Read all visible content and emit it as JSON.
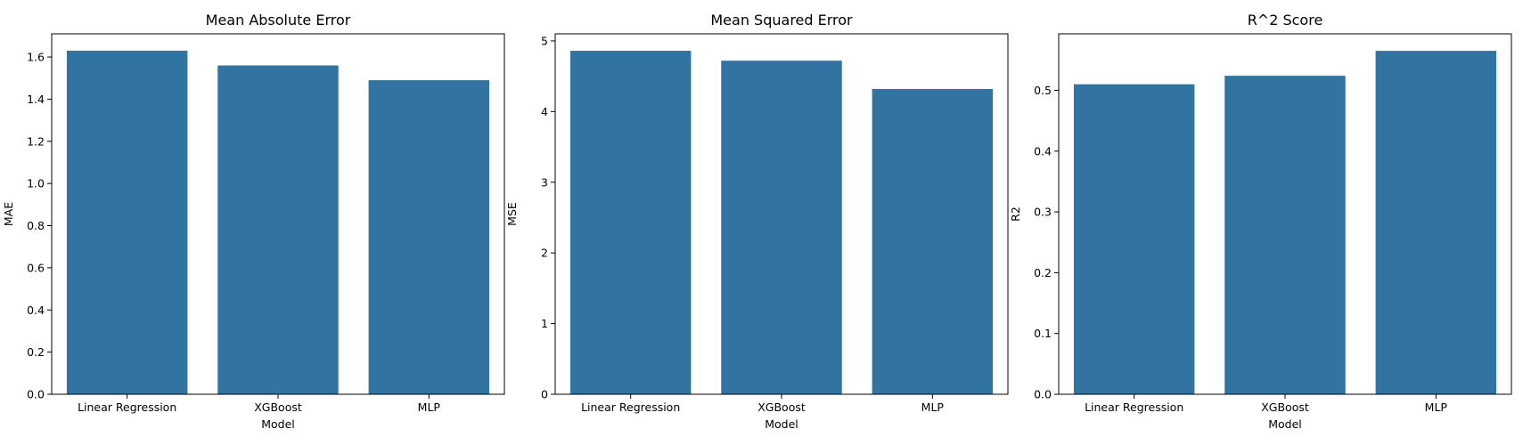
{
  "colors": {
    "bar": "#3274a1"
  },
  "chart_data": [
    {
      "type": "bar",
      "title": "Mean Absolute Error",
      "xlabel": "Model",
      "ylabel": "MAE",
      "categories": [
        "Linear Regression",
        "XGBoost",
        "MLP"
      ],
      "values": [
        1.63,
        1.56,
        1.49
      ],
      "ylim": [
        0,
        1.71
      ],
      "yticks": [
        0.0,
        0.2,
        0.4,
        0.6,
        0.8,
        1.0,
        1.2,
        1.4,
        1.6
      ],
      "ytick_labels": [
        "0.0",
        "0.2",
        "0.4",
        "0.6",
        "0.8",
        "1.0",
        "1.2",
        "1.4",
        "1.6"
      ],
      "grid": false
    },
    {
      "type": "bar",
      "title": "Mean Squared Error",
      "xlabel": "Model",
      "ylabel": "MSE",
      "categories": [
        "Linear Regression",
        "XGBoost",
        "MLP"
      ],
      "values": [
        4.86,
        4.72,
        4.32
      ],
      "ylim": [
        0,
        5.1
      ],
      "yticks": [
        0,
        1,
        2,
        3,
        4,
        5
      ],
      "ytick_labels": [
        "0",
        "1",
        "2",
        "3",
        "4",
        "5"
      ],
      "grid": false
    },
    {
      "type": "bar",
      "title": "R^2 Score",
      "xlabel": "Model",
      "ylabel": "R2",
      "categories": [
        "Linear Regression",
        "XGBoost",
        "MLP"
      ],
      "values": [
        0.51,
        0.524,
        0.565
      ],
      "ylim": [
        0,
        0.593
      ],
      "yticks": [
        0.0,
        0.1,
        0.2,
        0.3,
        0.4,
        0.5
      ],
      "ytick_labels": [
        "0.0",
        "0.1",
        "0.2",
        "0.3",
        "0.4",
        "0.5"
      ],
      "grid": false
    }
  ]
}
